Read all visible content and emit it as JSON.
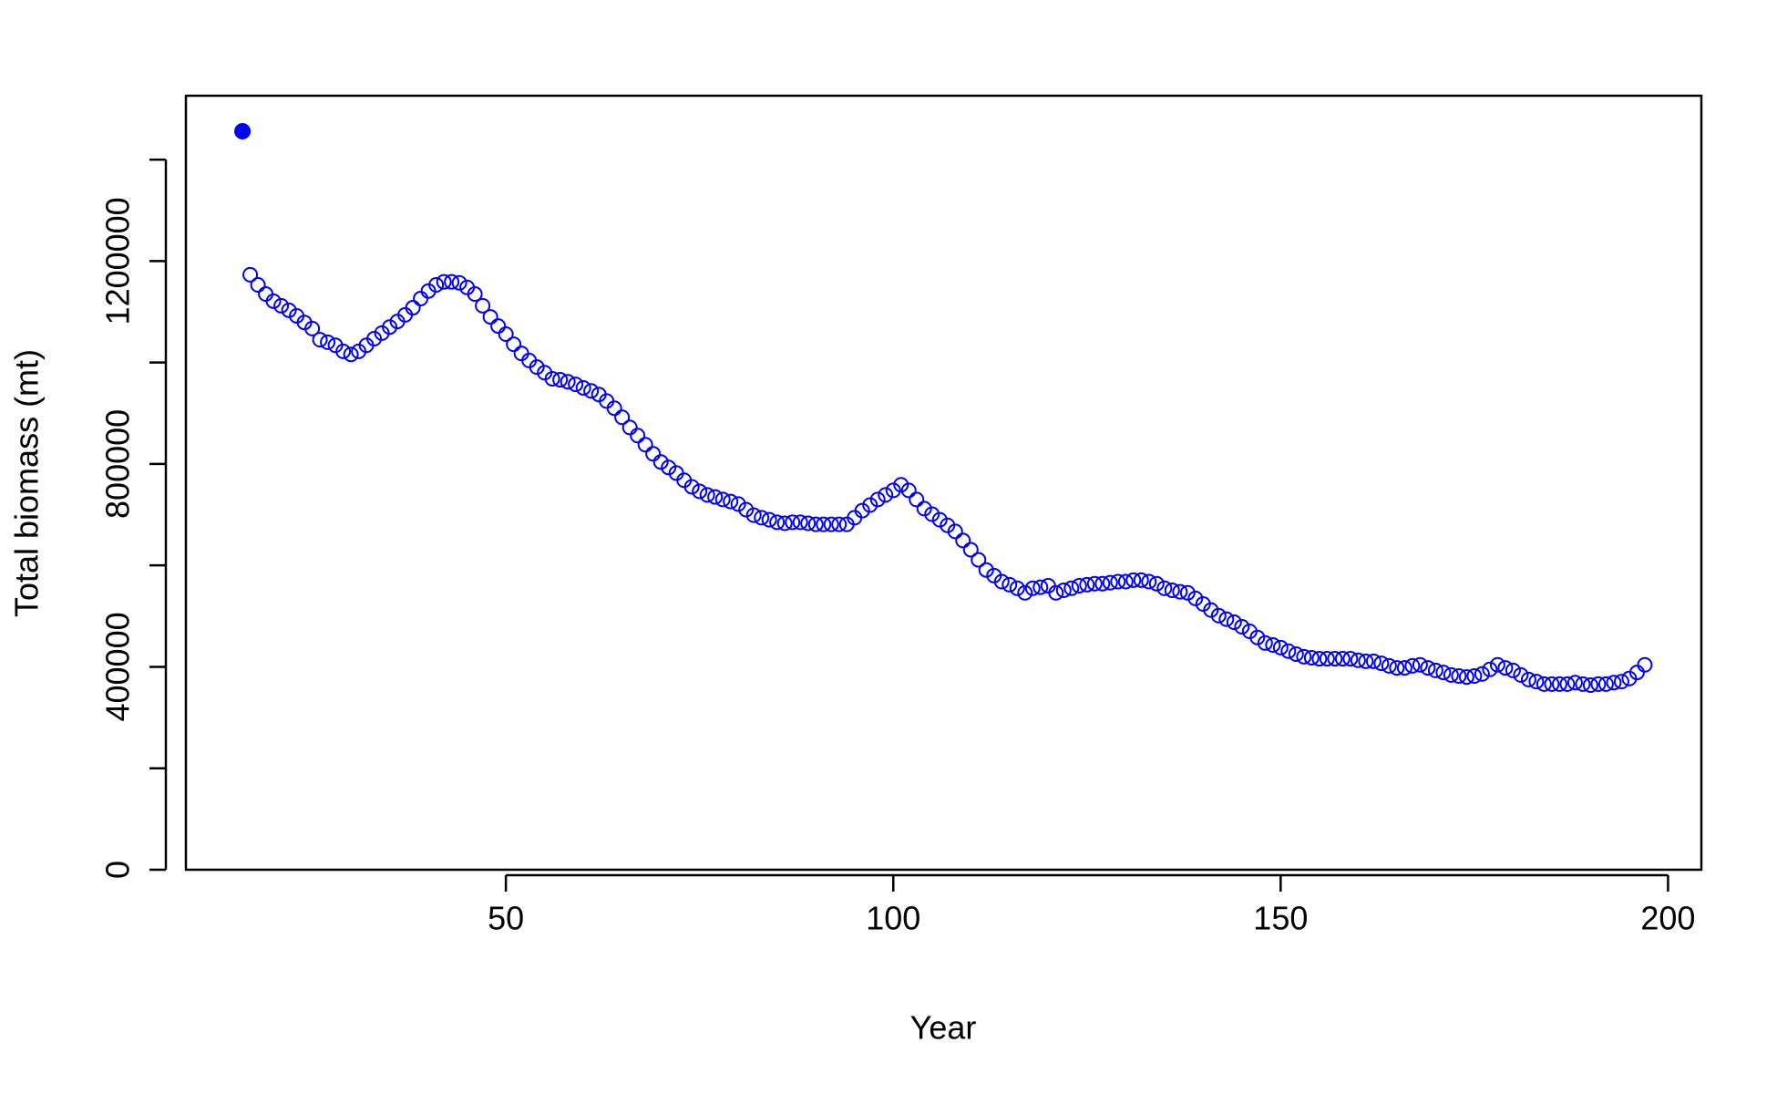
{
  "chart_data": {
    "type": "scatter",
    "x_label": "Year",
    "y_label": "Total biomass (mt)",
    "xlim": [
      8.7,
      204.3
    ],
    "ylim": [
      0,
      1526000
    ],
    "xticks": [
      50,
      100,
      150,
      200
    ],
    "yticks": [
      0,
      400000,
      800000,
      1200000
    ],
    "yticks_unlabeled": [
      200000,
      600000,
      1000000,
      1400000
    ],
    "series": [
      {
        "color": "#0000ff",
        "marker": "filled",
        "x": [
          16
        ],
        "values": [
          1456000
        ]
      },
      {
        "color": "#0000ff",
        "marker": "open",
        "x": [
          17,
          18,
          19,
          20,
          21,
          22,
          23,
          24,
          25,
          26,
          27,
          28,
          29,
          30,
          31,
          32,
          33,
          34,
          35,
          36,
          37,
          38,
          39,
          40,
          41,
          42,
          43,
          44,
          45,
          46,
          47,
          48,
          49,
          50,
          51,
          52,
          53,
          54,
          55,
          56,
          57,
          58,
          59,
          60,
          61,
          62,
          63,
          64,
          65,
          66,
          67,
          68,
          69,
          70,
          71,
          72,
          73,
          74,
          75,
          76,
          77,
          78,
          79,
          80,
          81,
          82,
          83,
          84,
          85,
          86,
          87,
          88,
          89,
          90,
          91,
          92,
          93,
          94,
          95,
          96,
          97,
          98,
          99,
          100,
          101,
          102,
          103,
          104,
          105,
          106,
          107,
          108,
          109,
          110,
          111,
          112,
          113,
          114,
          115,
          116,
          117,
          118,
          119,
          120,
          121,
          122,
          123,
          124,
          125,
          126,
          127,
          128,
          129,
          130,
          131,
          132,
          133,
          134,
          135,
          136,
          137,
          138,
          139,
          140,
          141,
          142,
          143,
          144,
          145,
          146,
          147,
          148,
          149,
          150,
          151,
          152,
          153,
          154,
          155,
          156,
          157,
          158,
          159,
          160,
          161,
          162,
          163,
          164,
          165,
          166,
          167,
          168,
          169,
          170,
          171,
          172,
          173,
          174,
          175,
          176,
          177,
          178,
          179,
          180,
          181,
          182,
          183,
          184,
          185,
          186,
          187,
          188,
          189,
          190,
          191,
          192,
          193,
          194,
          195,
          196,
          197
        ],
        "values": [
          1173000,
          1153000,
          1135000,
          1121000,
          1112000,
          1103000,
          1092000,
          1079000,
          1067000,
          1045000,
          1040000,
          1034000,
          1022000,
          1016000,
          1022000,
          1034000,
          1047000,
          1058000,
          1070000,
          1081000,
          1094000,
          1108000,
          1126000,
          1141000,
          1153000,
          1159000,
          1159000,
          1157000,
          1148000,
          1135000,
          1112000,
          1090000,
          1072000,
          1056000,
          1036000,
          1018000,
          1004000,
          991000,
          980000,
          968000,
          966000,
          962000,
          957000,
          950000,
          944000,
          937000,
          924000,
          910000,
          892000,
          872000,
          856000,
          838000,
          820000,
          804000,
          793000,
          782000,
          768000,
          755000,
          746000,
          739000,
          735000,
          730000,
          726000,
          721000,
          710000,
          699000,
          694000,
          690000,
          685000,
          683000,
          685000,
          685000,
          683000,
          681000,
          681000,
          681000,
          681000,
          681000,
          694000,
          708000,
          719000,
          730000,
          739000,
          748000,
          759000,
          748000,
          730000,
          712000,
          701000,
          690000,
          679000,
          667000,
          649000,
          631000,
          611000,
          591000,
          580000,
          568000,
          562000,
          555000,
          546000,
          555000,
          557000,
          560000,
          546000,
          551000,
          555000,
          560000,
          562000,
          564000,
          564000,
          566000,
          568000,
          568000,
          571000,
          571000,
          568000,
          564000,
          555000,
          551000,
          548000,
          546000,
          535000,
          524000,
          512000,
          501000,
          494000,
          488000,
          479000,
          470000,
          458000,
          447000,
          443000,
          438000,
          431000,
          425000,
          420000,
          418000,
          416000,
          416000,
          416000,
          416000,
          416000,
          413000,
          411000,
          411000,
          407000,
          402000,
          398000,
          398000,
          402000,
          404000,
          398000,
          393000,
          389000,
          384000,
          382000,
          380000,
          382000,
          386000,
          395000,
          404000,
          398000,
          393000,
          384000,
          375000,
          371000,
          366000,
          366000,
          366000,
          366000,
          369000,
          366000,
          364000,
          366000,
          366000,
          369000,
          371000,
          377000,
          389000,
          404000
        ]
      }
    ]
  }
}
